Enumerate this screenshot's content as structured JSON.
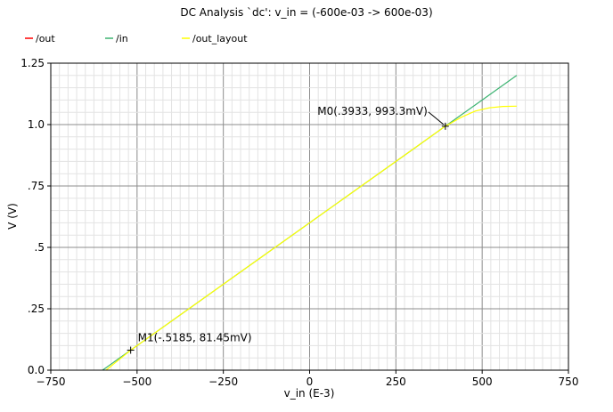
{
  "chart_data": {
    "type": "line",
    "title": "DC Analysis `dc': v_in = (-600e-03 -> 600e-03)",
    "xlabel": "v_in (E-3)",
    "ylabel": "V (V)",
    "xlim": [
      -750,
      750
    ],
    "ylim": [
      0,
      1.25
    ],
    "grid": true,
    "legend_position": "top-left",
    "x_ticks": [
      {
        "value": -750,
        "label": "−750"
      },
      {
        "value": -500,
        "label": "−500"
      },
      {
        "value": -250,
        "label": "−250"
      },
      {
        "value": 0,
        "label": "0"
      },
      {
        "value": 250,
        "label": "250"
      },
      {
        "value": 500,
        "label": "500"
      },
      {
        "value": 750,
        "label": "750"
      }
    ],
    "y_ticks": [
      {
        "value": 0,
        "label": "0.0"
      },
      {
        "value": 0.25,
        "label": ".25"
      },
      {
        "value": 0.5,
        "label": ".5"
      },
      {
        "value": 0.75,
        "label": ".75"
      },
      {
        "value": 1.0,
        "label": "1.0"
      },
      {
        "value": 1.25,
        "label": "1.25"
      }
    ],
    "series": [
      {
        "name": "/out",
        "color": "#ff0000",
        "points": []
      },
      {
        "name": "/in",
        "color": "#3cb371",
        "points": [
          [
            -600,
            0.0
          ],
          [
            -300,
            0.3
          ],
          [
            0,
            0.6
          ],
          [
            300,
            0.9
          ],
          [
            393.3,
            0.9933
          ],
          [
            500,
            1.1
          ],
          [
            600,
            1.2
          ]
        ]
      },
      {
        "name": "/out_layout",
        "color": "#ffff00",
        "points": [
          [
            -590,
            0.0
          ],
          [
            -518.5,
            0.08145
          ],
          [
            -250,
            0.35
          ],
          [
            0,
            0.6
          ],
          [
            250,
            0.85
          ],
          [
            393.3,
            0.9933
          ],
          [
            440,
            1.03
          ],
          [
            480,
            1.055
          ],
          [
            520,
            1.068
          ],
          [
            560,
            1.074
          ],
          [
            600,
            1.075
          ]
        ]
      }
    ],
    "markers": [
      {
        "x": 393.3,
        "y": 0.9933,
        "label": "M0(.3933, 993.3mV)",
        "label_side": "left"
      },
      {
        "x": -518.5,
        "y": 0.08145,
        "label": "M1(-.5185, 81.45mV)",
        "label_side": "right"
      }
    ]
  }
}
